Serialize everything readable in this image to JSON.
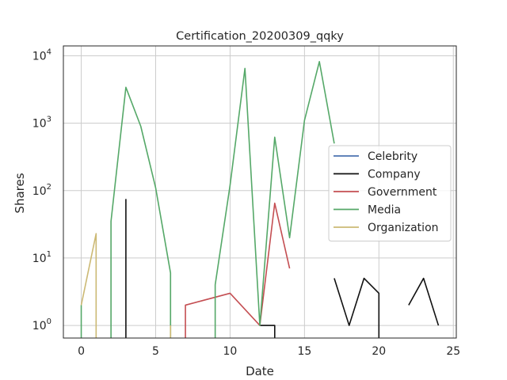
{
  "chart_data": {
    "type": "line",
    "title": "Certification_20200309_qqky",
    "xlabel": "Date",
    "ylabel": "Shares",
    "xlim": [
      -1.2,
      25.2
    ],
    "ylim": [
      0.65,
      14000
    ],
    "yscale": "log",
    "grid": true,
    "legend_position": "center-right",
    "x_ticks": [
      {
        "value": 0,
        "label": "0"
      },
      {
        "value": 5,
        "label": "5"
      },
      {
        "value": 10,
        "label": "10"
      },
      {
        "value": 15,
        "label": "15"
      },
      {
        "value": 20,
        "label": "20"
      },
      {
        "value": 25,
        "label": "25"
      }
    ],
    "y_ticks": [
      {
        "value": 1,
        "base": "10",
        "exp": "0"
      },
      {
        "value": 10,
        "base": "10",
        "exp": "1"
      },
      {
        "value": 100,
        "base": "10",
        "exp": "2"
      },
      {
        "value": 1000,
        "base": "10",
        "exp": "3"
      },
      {
        "value": 10000,
        "base": "10",
        "exp": "4"
      }
    ],
    "series": [
      {
        "name": "Celebrity",
        "color": "#4c72b0",
        "segments": []
      },
      {
        "name": "Company",
        "color": "#111111",
        "segments": [
          [
            [
              3,
              75
            ],
            [
              3,
              0
            ]
          ],
          [
            [
              12,
              1
            ],
            [
              13,
              1
            ],
            [
              13,
              0
            ]
          ],
          [
            [
              17,
              5
            ],
            [
              18,
              1
            ],
            [
              19,
              5
            ],
            [
              20,
              3
            ],
            [
              20,
              0
            ]
          ],
          [
            [
              22,
              2
            ],
            [
              23,
              5
            ],
            [
              24,
              1
            ]
          ]
        ]
      },
      {
        "name": "Government",
        "color": "#c44e52",
        "segments": [
          [
            [
              7,
              0
            ],
            [
              7,
              2
            ],
            [
              10,
              3
            ],
            [
              12,
              1
            ],
            [
              13,
              65
            ],
            [
              14,
              7
            ]
          ]
        ]
      },
      {
        "name": "Media",
        "color": "#55a868",
        "segments": [
          [
            [
              0,
              2
            ],
            [
              0,
              0
            ]
          ],
          [
            [
              2,
              0
            ],
            [
              2,
              35
            ],
            [
              3,
              3400
            ],
            [
              4,
              900
            ],
            [
              5,
              110
            ],
            [
              6,
              6
            ],
            [
              6,
              0
            ]
          ],
          [
            [
              9,
              0
            ],
            [
              9,
              4
            ],
            [
              10,
              120
            ],
            [
              11,
              6500
            ],
            [
              12,
              1
            ],
            [
              13,
              620
            ],
            [
              14,
              20
            ],
            [
              15,
              1100
            ],
            [
              16,
              8200
            ],
            [
              17,
              500
            ]
          ]
        ]
      },
      {
        "name": "Organization",
        "color": "#ccb974",
        "segments": [
          [
            [
              0,
              2
            ],
            [
              1,
              23
            ],
            [
              1,
              0
            ]
          ],
          [
            [
              6,
              1
            ],
            [
              6,
              0
            ]
          ]
        ]
      }
    ]
  }
}
